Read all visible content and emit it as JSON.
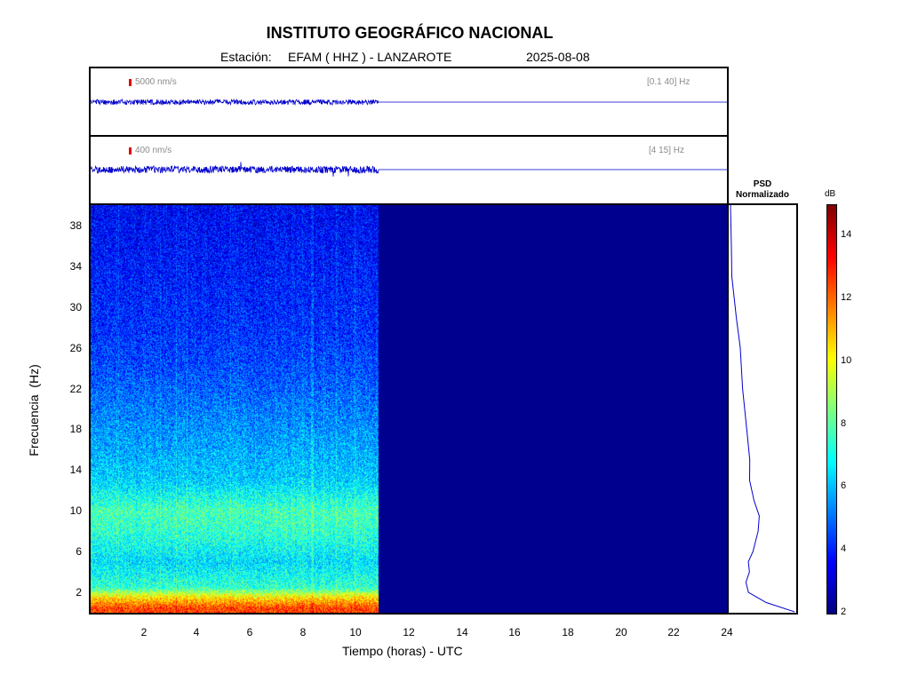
{
  "header": {
    "title": "INSTITUTO GEOGRÁFICO NACIONAL",
    "station_label": "Estación:",
    "station": "EFAM ( HHZ ) - LANZAROTE",
    "date": "2025-08-08"
  },
  "trace_top": {
    "scale": "5000 nm/s",
    "band": "[0.1 40] Hz"
  },
  "trace_bottom": {
    "scale": "400 nm/s",
    "band": "[4 15] Hz"
  },
  "psd": {
    "label_line1": "PSD",
    "label_line2": "Normalizado"
  },
  "colorbar": {
    "unit": "dB",
    "ticks": [
      "2",
      "4",
      "6",
      "8",
      "10",
      "12",
      "14"
    ],
    "range": [
      2,
      15
    ]
  },
  "colors": {
    "trace": "#0000cc",
    "frame": "#000000",
    "no_data": "#00008f",
    "scale_bar": "#e00000"
  },
  "chart_data": {
    "type": "heatmap",
    "xlabel": "Tiempo (horas) - UTC",
    "ylabel": "Frecuencia  (Hz)",
    "xlim": [
      0,
      24
    ],
    "ylim": [
      0,
      40
    ],
    "x_ticks": [
      "2",
      "4",
      "6",
      "8",
      "10",
      "12",
      "14",
      "16",
      "18",
      "20",
      "22",
      "24"
    ],
    "y_ticks": [
      "2",
      "6",
      "10",
      "14",
      "18",
      "22",
      "26",
      "30",
      "34",
      "38"
    ],
    "data_end_hour": 10.85,
    "spectrogram_profile_db": [
      {
        "freq": 0.5,
        "db": 12.5
      },
      {
        "freq": 1.5,
        "db": 10.5
      },
      {
        "freq": 2.5,
        "db": 7.5
      },
      {
        "freq": 5,
        "db": 6.5
      },
      {
        "freq": 8,
        "db": 7.5
      },
      {
        "freq": 10,
        "db": 7.8
      },
      {
        "freq": 13,
        "db": 6.3
      },
      {
        "freq": 16,
        "db": 5.8
      },
      {
        "freq": 20,
        "db": 5.2
      },
      {
        "freq": 24,
        "db": 4.6
      },
      {
        "freq": 28,
        "db": 4.2
      },
      {
        "freq": 34,
        "db": 3.9
      },
      {
        "freq": 40,
        "db": 3.6
      }
    ],
    "psd_normalized": [
      {
        "freq": 0.1,
        "value": 1.0
      },
      {
        "freq": 1,
        "value": 0.55
      },
      {
        "freq": 2,
        "value": 0.28
      },
      {
        "freq": 3,
        "value": 0.25
      },
      {
        "freq": 4,
        "value": 0.3
      },
      {
        "freq": 5,
        "value": 0.28
      },
      {
        "freq": 6,
        "value": 0.35
      },
      {
        "freq": 8,
        "value": 0.42
      },
      {
        "freq": 9.5,
        "value": 0.45
      },
      {
        "freq": 11,
        "value": 0.38
      },
      {
        "freq": 13,
        "value": 0.3
      },
      {
        "freq": 15,
        "value": 0.3
      },
      {
        "freq": 18,
        "value": 0.26
      },
      {
        "freq": 22,
        "value": 0.2
      },
      {
        "freq": 26,
        "value": 0.14
      },
      {
        "freq": 29,
        "value": 0.1
      },
      {
        "freq": 30,
        "value": 0.06
      },
      {
        "freq": 33,
        "value": 0.02
      },
      {
        "freq": 36,
        "value": 0.02
      },
      {
        "freq": 40,
        "value": 0.0
      }
    ]
  }
}
